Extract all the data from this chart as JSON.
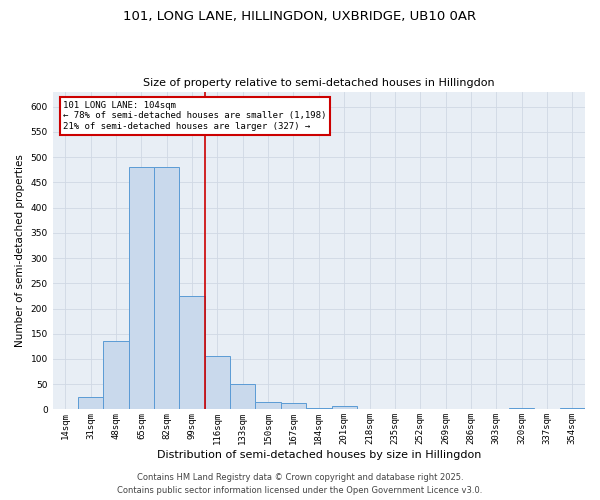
{
  "title1": "101, LONG LANE, HILLINGDON, UXBRIDGE, UB10 0AR",
  "title2": "Size of property relative to semi-detached houses in Hillingdon",
  "xlabel": "Distribution of semi-detached houses by size in Hillingdon",
  "ylabel": "Number of semi-detached properties",
  "bin_labels": [
    "14sqm",
    "31sqm",
    "48sqm",
    "65sqm",
    "82sqm",
    "99sqm",
    "116sqm",
    "133sqm",
    "150sqm",
    "167sqm",
    "184sqm",
    "201sqm",
    "218sqm",
    "235sqm",
    "252sqm",
    "269sqm",
    "286sqm",
    "303sqm",
    "320sqm",
    "337sqm",
    "354sqm"
  ],
  "bar_heights": [
    0,
    25,
    135,
    480,
    480,
    225,
    105,
    50,
    15,
    13,
    2,
    6,
    0,
    0,
    0,
    0,
    0,
    0,
    2,
    0,
    2
  ],
  "bar_color": "#c9d9ec",
  "bar_edge_color": "#5b9bd5",
  "background_color": "#e8eef5",
  "red_line_x": 5.5,
  "annotation_line1": "101 LONG LANE: 104sqm",
  "annotation_line2": "← 78% of semi-detached houses are smaller (1,198)",
  "annotation_line3": "21% of semi-detached houses are larger (327) →",
  "annotation_box_color": "#cc0000",
  "vline_color": "#cc0000",
  "footer1": "Contains HM Land Registry data © Crown copyright and database right 2025.",
  "footer2": "Contains public sector information licensed under the Open Government Licence v3.0.",
  "ylim": [
    0,
    630
  ],
  "yticks": [
    0,
    50,
    100,
    150,
    200,
    250,
    300,
    350,
    400,
    450,
    500,
    550,
    600
  ],
  "grid_color": "#d0d8e4",
  "title1_fontsize": 9.5,
  "title2_fontsize": 8,
  "ylabel_fontsize": 7.5,
  "xlabel_fontsize": 8,
  "tick_fontsize": 6.5,
  "footer_fontsize": 6,
  "annot_fontsize": 6.5
}
